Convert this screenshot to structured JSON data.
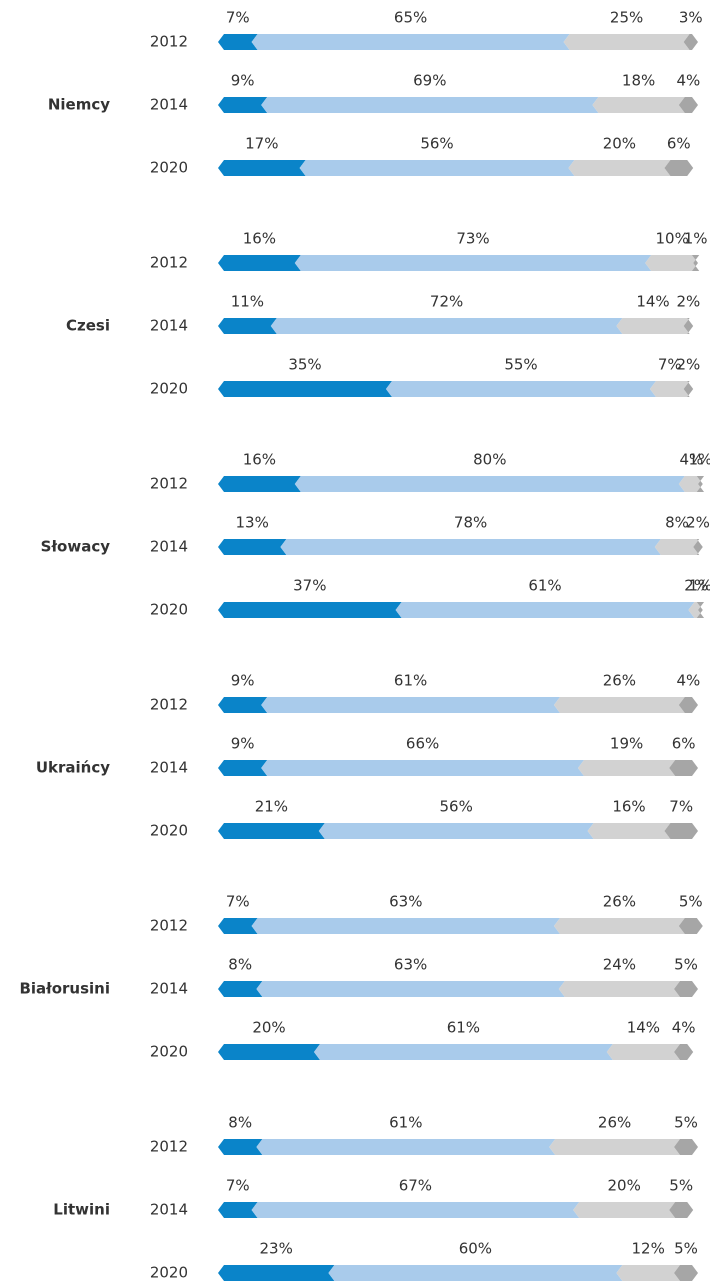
{
  "chart_data": {
    "type": "bar",
    "orientation": "horizontal",
    "stacked": true,
    "xlim": [
      0,
      100
    ],
    "groups": [
      {
        "label": "Niemcy",
        "categories": [
          "2012",
          "2014",
          "2020"
        ],
        "series": [
          {
            "color": "#0a84c9",
            "values": [
              7,
              9,
              17
            ],
            "value_labels": [
              "7%",
              "9%",
              "17%"
            ]
          },
          {
            "color": "#a9cbeb",
            "values": [
              65,
              69,
              56
            ],
            "value_labels": [
              "65%",
              "69%",
              "56%"
            ]
          },
          {
            "color": "#d2d2d2",
            "values": [
              25,
              18,
              20
            ],
            "value_labels": [
              "25%",
              "18%",
              "20%"
            ]
          },
          {
            "color": "#a6a6a6",
            "values": [
              3,
              4,
              6
            ],
            "value_labels": [
              "3%",
              "4%",
              "6%"
            ]
          }
        ]
      },
      {
        "label": "Czesi",
        "categories": [
          "2012",
          "2014",
          "2020"
        ],
        "series": [
          {
            "color": "#0a84c9",
            "values": [
              16,
              11,
              35
            ],
            "value_labels": [
              "16%",
              "11%",
              "35%"
            ]
          },
          {
            "color": "#a9cbeb",
            "values": [
              73,
              72,
              55
            ],
            "value_labels": [
              "73%",
              "72%",
              "55%"
            ]
          },
          {
            "color": "#d2d2d2",
            "values": [
              10,
              14,
              7
            ],
            "value_labels": [
              "10%",
              "14%",
              "7%"
            ]
          },
          {
            "color": "#a6a6a6",
            "values": [
              1,
              2,
              2
            ],
            "value_labels": [
              "1%",
              "2%",
              "2%"
            ]
          }
        ]
      },
      {
        "label": "Słowacy",
        "categories": [
          "2012",
          "2014",
          "2020"
        ],
        "series": [
          {
            "color": "#0a84c9",
            "values": [
              16,
              13,
              37
            ],
            "value_labels": [
              "16%",
              "13%",
              "37%"
            ]
          },
          {
            "color": "#a9cbeb",
            "values": [
              80,
              78,
              61
            ],
            "value_labels": [
              "80%",
              "78%",
              "61%"
            ]
          },
          {
            "color": "#d2d2d2",
            "values": [
              4,
              8,
              2
            ],
            "value_labels": [
              "4%",
              "8%",
              "2%"
            ]
          },
          {
            "color": "#a6a6a6",
            "values": [
              1,
              2,
              1
            ],
            "value_labels": [
              "1%",
              "2%",
              "1%"
            ]
          }
        ]
      },
      {
        "label": "Ukraińcy",
        "categories": [
          "2012",
          "2014",
          "2020"
        ],
        "series": [
          {
            "color": "#0a84c9",
            "values": [
              9,
              9,
              21
            ],
            "value_labels": [
              "9%",
              "9%",
              "21%"
            ]
          },
          {
            "color": "#a9cbeb",
            "values": [
              61,
              66,
              56
            ],
            "value_labels": [
              "61%",
              "66%",
              "56%"
            ]
          },
          {
            "color": "#d2d2d2",
            "values": [
              26,
              19,
              16
            ],
            "value_labels": [
              "26%",
              "19%",
              "16%"
            ]
          },
          {
            "color": "#a6a6a6",
            "values": [
              4,
              6,
              7
            ],
            "value_labels": [
              "4%",
              "6%",
              "7%"
            ]
          }
        ]
      },
      {
        "label": "Białorusini",
        "categories": [
          "2012",
          "2014",
          "2020"
        ],
        "series": [
          {
            "color": "#0a84c9",
            "values": [
              7,
              8,
              20
            ],
            "value_labels": [
              "7%",
              "8%",
              "20%"
            ]
          },
          {
            "color": "#a9cbeb",
            "values": [
              63,
              63,
              61
            ],
            "value_labels": [
              "63%",
              "63%",
              "61%"
            ]
          },
          {
            "color": "#d2d2d2",
            "values": [
              26,
              24,
              14
            ],
            "value_labels": [
              "26%",
              "24%",
              "14%"
            ]
          },
          {
            "color": "#a6a6a6",
            "values": [
              5,
              5,
              4
            ],
            "value_labels": [
              "5%",
              "5%",
              "4%"
            ]
          }
        ]
      },
      {
        "label": "Litwini",
        "categories": [
          "2012",
          "2014",
          "2020"
        ],
        "series": [
          {
            "color": "#0a84c9",
            "values": [
              8,
              7,
              23
            ],
            "value_labels": [
              "8%",
              "7%",
              "23%"
            ]
          },
          {
            "color": "#a9cbeb",
            "values": [
              61,
              67,
              60
            ],
            "value_labels": [
              "61%",
              "67%",
              "60%"
            ]
          },
          {
            "color": "#d2d2d2",
            "values": [
              26,
              20,
              12
            ],
            "value_labels": [
              "26%",
              "20%",
              "12%"
            ]
          },
          {
            "color": "#a6a6a6",
            "values": [
              5,
              5,
              5
            ],
            "value_labels": [
              "5%",
              "5%",
              "5%"
            ]
          }
        ]
      }
    ]
  }
}
